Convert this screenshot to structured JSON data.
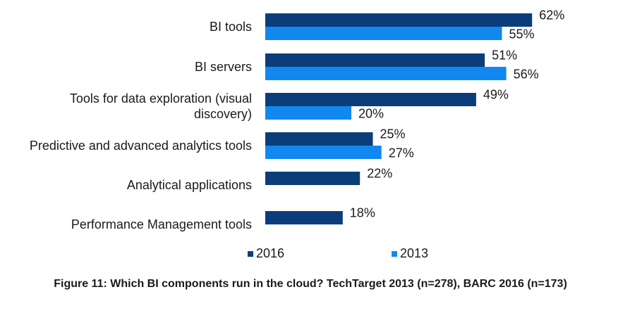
{
  "chart_data": {
    "type": "bar",
    "orientation": "horizontal",
    "categories": [
      [
        "BI tools"
      ],
      [
        "BI servers"
      ],
      [
        "Tools for data exploration (visual",
        "discovery)"
      ],
      [
        "Predictive and advanced analytics tools"
      ],
      [
        "Analytical applications"
      ],
      [
        "Performance Management tools"
      ]
    ],
    "series": [
      {
        "name": "2016",
        "color": "#0b3d7a",
        "values": [
          62,
          51,
          49,
          25,
          22,
          18
        ]
      },
      {
        "name": "2013",
        "color": "#1188f0",
        "values": [
          55,
          56,
          20,
          27,
          null,
          null
        ]
      }
    ],
    "value_suffix": "%",
    "xlim": [
      0,
      100
    ],
    "legend": "bottom",
    "grid": false
  },
  "legend": {
    "items": [
      {
        "label": "2016",
        "color": "#0b3d7a"
      },
      {
        "label": "2013",
        "color": "#1188f0"
      }
    ]
  },
  "caption": "Figure 11: Which BI components run in the cloud? TechTarget 2013 (n=278), BARC 2016 (n=173)"
}
